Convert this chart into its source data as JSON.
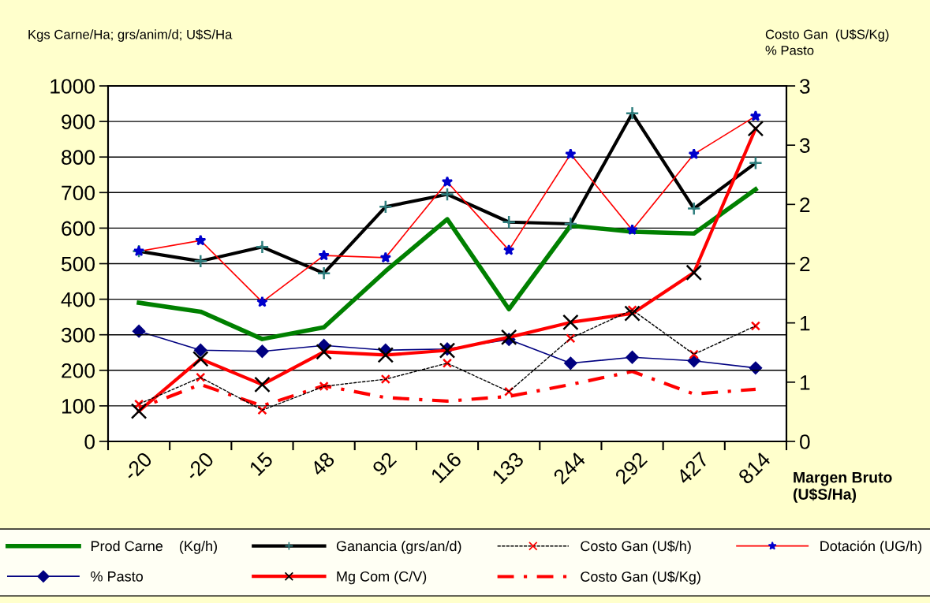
{
  "chart_data": {
    "type": "line",
    "categories": [
      "-20",
      "-20",
      "15",
      "48",
      "92",
      "116",
      "133",
      "244",
      "292",
      "427",
      "814"
    ],
    "xlabel": "Margen Bruto\n(U$S/Ha)",
    "ylabel": "Kgs Carne/Ha; grs/anim/d; U$S/Ha",
    "y2label": "Costo Gan  (U$S/Kg)\n% Pasto",
    "ylim": [
      0,
      1000
    ],
    "yticks": [
      0,
      100,
      200,
      300,
      400,
      500,
      600,
      700,
      800,
      900,
      1000
    ],
    "y2lim": [
      0,
      3
    ],
    "y2ticks": [
      0,
      {
        "value": 0.5,
        "label": "1"
      },
      1,
      {
        "value": 1.5,
        "label": "2"
      },
      2,
      {
        "value": 2.5,
        "label": "3"
      },
      3
    ],
    "grid": "y",
    "legend": "bottom",
    "series": [
      {
        "name": "Prod Carne    (Kg/h)",
        "color": "#008000",
        "marker": "none",
        "line_style": "solid",
        "values": [
          390,
          365,
          288,
          321,
          479,
          625,
          372,
          607,
          590,
          585,
          709
        ]
      },
      {
        "name": "Ganancia (grs/an/d)",
        "color": "#000000",
        "marker": "plus",
        "line_style": "solid",
        "values": [
          535,
          507,
          547,
          473,
          660,
          695,
          617,
          612,
          923,
          655,
          783
        ]
      },
      {
        "name": "Costo Gan (U$/h)",
        "color": "#000000",
        "marker": "cross",
        "line_style": "dashed",
        "values": [
          105,
          180,
          88,
          155,
          175,
          220,
          140,
          290,
          370,
          245,
          325
        ]
      },
      {
        "name": "Dotación (UG/h)",
        "color": "#ff0000",
        "marker": "star",
        "line_style": "solid",
        "values": [
          535,
          565,
          392,
          523,
          517,
          730,
          538,
          808,
          595,
          808,
          915
        ]
      },
      {
        "name": "% Pasto",
        "color": "#000080",
        "marker": "diamond",
        "line_style": "solid",
        "axis": "y2",
        "values": [
          0.93,
          0.77,
          0.76,
          0.81,
          0.77,
          0.78,
          0.86,
          0.66,
          0.71,
          0.68,
          0.62
        ]
      },
      {
        "name": "Mg Com (C/V)",
        "color": "#ff0000",
        "marker": "cross",
        "line_style": "solid",
        "values": [
          85,
          232,
          160,
          252,
          243,
          256,
          293,
          335,
          360,
          475,
          880
        ]
      },
      {
        "name": "Costo Gan (U$/Kg)",
        "color": "#ff0000",
        "marker": "none",
        "line_style": "dashdot",
        "axis": "y2",
        "values": [
          0.28,
          0.48,
          0.3,
          0.47,
          0.37,
          0.34,
          0.38,
          0.48,
          0.59,
          0.4,
          0.44
        ]
      }
    ]
  }
}
